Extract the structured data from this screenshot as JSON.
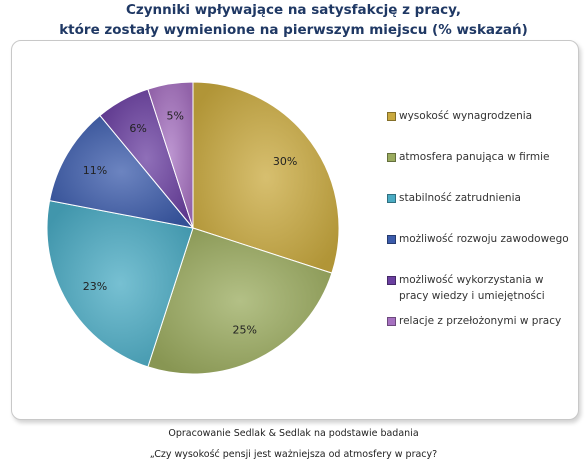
{
  "title_line1": "Czynniki wpływające na satysfakcję z pracy,",
  "title_line2": "które zostały wymienione na pierwszym miejscu (% wskazań)",
  "chart_data": {
    "type": "pie",
    "legend_position": "right",
    "slices": [
      {
        "label": "wysokość wynagrodzenia",
        "value": 30,
        "value_label": "30%",
        "color": "#c9a93f"
      },
      {
        "label": "atmosfera panująca w firmie",
        "value": 25,
        "value_label": "25%",
        "color": "#9aab5e"
      },
      {
        "label": "stabilność zatrudnienia",
        "value": 23,
        "value_label": "23%",
        "color": "#4aabc3"
      },
      {
        "label": "możliwość rozwoju zawodowego",
        "value": 11,
        "value_label": "11%",
        "color": "#3b5bab"
      },
      {
        "label": "możliwość wykorzystania w pracy wiedzy i umiejętności",
        "value": 6,
        "value_label": "6%",
        "color": "#6a3fa0"
      },
      {
        "label": "relacje z przełożonymi w pracy",
        "value": 5,
        "value_label": "5%",
        "color": "#a671c0"
      }
    ]
  },
  "footer_line1": "Opracowanie Sedlak & Sedlak na podstawie badania",
  "footer_line2": "„Czy wysokość pensji jest ważniejsza od atmosfery w pracy?"
}
